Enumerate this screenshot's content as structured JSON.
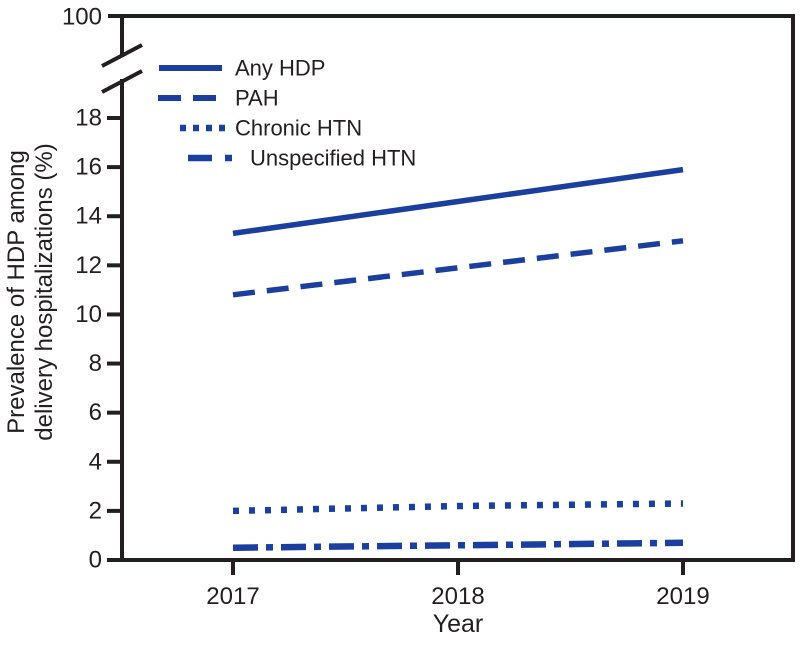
{
  "figure": {
    "y_axis_title_line1": "Prevalence of HDP among",
    "y_axis_title_line2": "delivery hospitalizations (%)",
    "x_axis_title": "Year"
  },
  "colors": {
    "series_blue": "#1b3f9e",
    "axis_black": "#231f20"
  },
  "chart_data": {
    "type": "line",
    "x": [
      2017,
      2018,
      2019
    ],
    "x_tick_labels": [
      "2017",
      "2018",
      "2019"
    ],
    "y_ticks_values": [
      0,
      2,
      4,
      6,
      8,
      10,
      12,
      14,
      16,
      18
    ],
    "y_tick_labels": [
      "0",
      "2",
      "4",
      "6",
      "8",
      "10",
      "12",
      "14",
      "16",
      "18"
    ],
    "broken_axis": true,
    "broken_axis_top_label": "100",
    "ylabel": "Prevalence of HDP among delivery hospitalizations (%)",
    "xlabel": "Year",
    "ylim_lower_segment": [
      0,
      19.5
    ],
    "grid": false,
    "legend_position": "upper-left-inside",
    "series": [
      {
        "name": "Any HDP",
        "style": "solid",
        "values": [
          13.3,
          14.6,
          15.9
        ]
      },
      {
        "name": "PAH",
        "style": "dashed",
        "values": [
          10.8,
          11.9,
          13.0
        ]
      },
      {
        "name": "Chronic HTN",
        "style": "dotted",
        "values": [
          2.0,
          2.2,
          2.3
        ]
      },
      {
        "name": "Unspecified HTN",
        "style": "dash-dot",
        "values": [
          0.5,
          0.6,
          0.7
        ]
      }
    ]
  }
}
